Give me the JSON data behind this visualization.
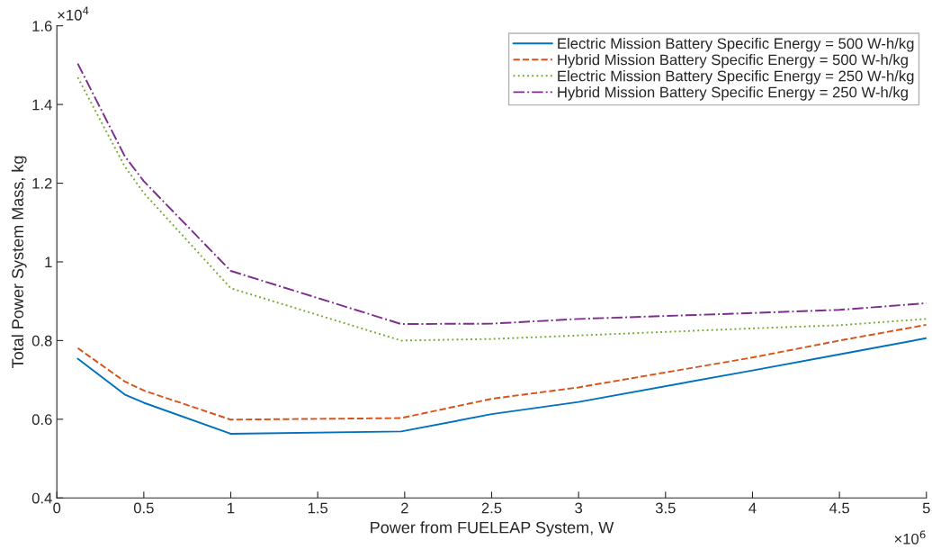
{
  "chart_data": {
    "type": "line",
    "xlabel": "Power from FUELEAP System, W",
    "ylabel": "Total Power System Mass, kg",
    "x": [
      0.12,
      0.39,
      0.5,
      1,
      1.98,
      2.5,
      3,
      4,
      4.5,
      5
    ],
    "series": [
      {
        "name": "Electric Mission Battery Specific Energy = 500 W-h/kg",
        "color": "#0072bd",
        "line_style": "solid",
        "values": [
          0.754,
          0.663,
          0.642,
          0.563,
          0.569,
          0.613,
          0.644,
          0.724,
          0.765,
          0.806
        ]
      },
      {
        "name": "Hybrid Mission Battery Specific Energy = 500 W-h/kg",
        "color": "#d95319",
        "line_style": "dashed",
        "values": [
          0.781,
          0.696,
          0.673,
          0.599,
          0.603,
          0.652,
          0.681,
          0.757,
          0.8,
          0.84
        ]
      },
      {
        "name": "Electric Mission Battery Specific Energy = 250 W-h/kg",
        "color": "#77ac30",
        "line_style": "dotted",
        "values": [
          1.469,
          1.243,
          1.175,
          0.933,
          0.8,
          0.804,
          0.813,
          0.831,
          0.839,
          0.855
        ]
      },
      {
        "name": "Hybrid Mission Battery Specific Energy = 250 W-h/kg",
        "color": "#7e2f8e",
        "line_style": "dashdot",
        "values": [
          1.504,
          1.269,
          1.205,
          0.977,
          0.842,
          0.843,
          0.855,
          0.87,
          0.878,
          0.895
        ]
      }
    ],
    "xlim": [
      0,
      5
    ],
    "ylim": [
      0.4,
      1.6
    ],
    "xticks": [
      0,
      0.5,
      1,
      1.5,
      2,
      2.5,
      3,
      3.5,
      4,
      4.5,
      5
    ],
    "yticks": [
      0.4,
      0.6,
      0.8,
      1,
      1.2,
      1.4,
      1.6
    ],
    "annotations": [
      "×10$^{4}$",
      "×10$^{6}$"
    ],
    "legend": "top right",
    "grid": false
  }
}
